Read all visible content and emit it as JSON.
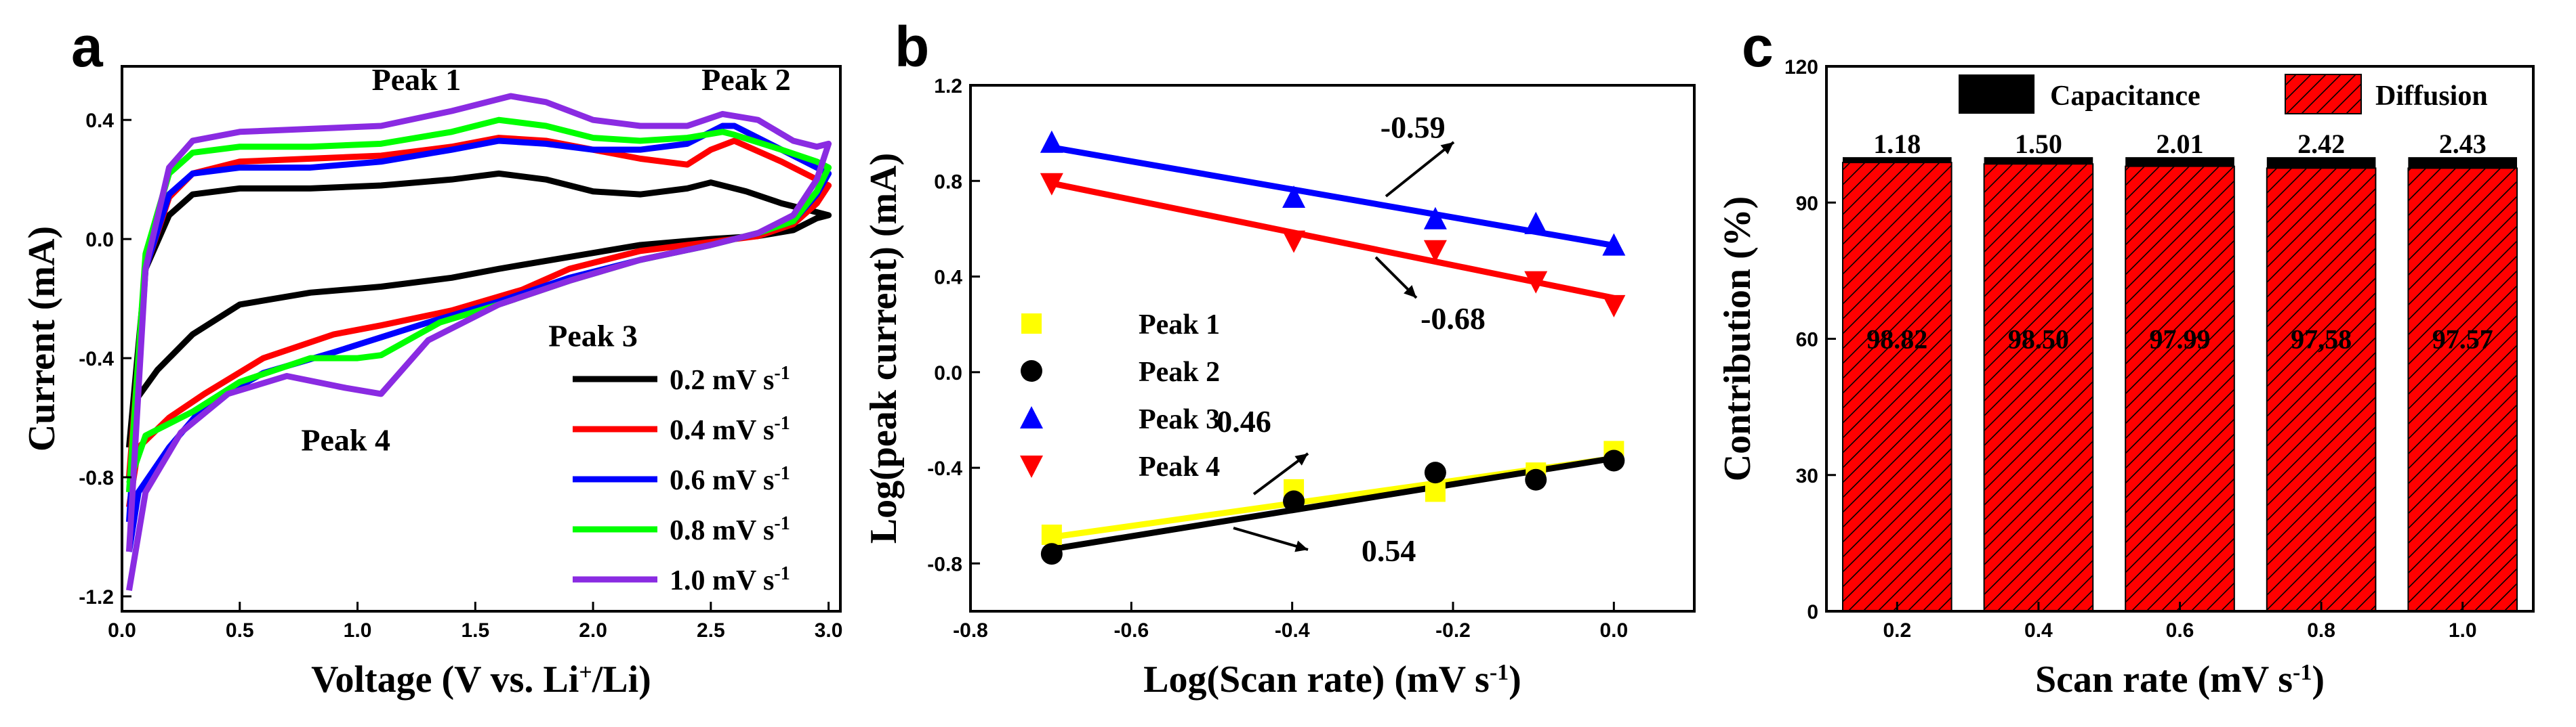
{
  "panel_letters": [
    "a",
    "b",
    "c"
  ],
  "chart_data": [
    {
      "type": "line",
      "panel": "a",
      "xlabel": "Voltage (V vs. Li",
      "xlabel_sup": "+",
      "xlabel_tail": "/Li)",
      "ylabel": "Current (mA)",
      "xlim": [
        0,
        3.05
      ],
      "ylim": [
        -1.25,
        0.58
      ],
      "xticks": [
        0.0,
        0.5,
        1.0,
        1.5,
        2.0,
        2.5,
        3.0
      ],
      "yticks": [
        -1.2,
        -0.8,
        -0.4,
        0.0,
        0.4
      ],
      "xtick_labels": [
        "0.0",
        "0.5",
        "1.0",
        "1.5",
        "2.0",
        "2.5",
        "3.0"
      ],
      "ytick_labels": [
        "-1.2",
        "-0.8",
        "-0.4",
        "0.0",
        "0.4"
      ],
      "annotations": [
        {
          "text": "Peak 1",
          "x": 1.25,
          "y": 0.5
        },
        {
          "text": "Peak 2",
          "x": 2.65,
          "y": 0.5
        },
        {
          "text": "Peak 3",
          "x": 2.0,
          "y": -0.36
        },
        {
          "text": "Peak 4",
          "x": 0.95,
          "y": -0.71
        }
      ],
      "legend_unit": "mV s",
      "legend_sup": "-1",
      "series": [
        {
          "name": "0.2",
          "color": "#000000",
          "ox": [
            0.03,
            0.1,
            0.2,
            0.3,
            0.5,
            0.8,
            1.1,
            1.4,
            1.6,
            1.8,
            2.0,
            2.2,
            2.4,
            2.5,
            2.65,
            2.8,
            2.95,
            3.0
          ],
          "oy": [
            -0.7,
            -0.1,
            0.08,
            0.15,
            0.17,
            0.17,
            0.18,
            0.2,
            0.22,
            0.2,
            0.16,
            0.15,
            0.17,
            0.19,
            0.16,
            0.12,
            0.09,
            0.08
          ],
          "rx": [
            3.0,
            2.95,
            2.85,
            2.7,
            2.5,
            2.2,
            1.9,
            1.6,
            1.4,
            1.1,
            0.8,
            0.5,
            0.3,
            0.15,
            0.05,
            0.03
          ],
          "ry": [
            0.08,
            0.07,
            0.03,
            0.01,
            0.0,
            -0.02,
            -0.06,
            -0.1,
            -0.13,
            -0.16,
            -0.18,
            -0.22,
            -0.32,
            -0.44,
            -0.55,
            -0.7
          ]
        },
        {
          "name": "0.4",
          "color": "#ff0000",
          "ox": [
            0.03,
            0.1,
            0.2,
            0.3,
            0.5,
            0.8,
            1.1,
            1.4,
            1.6,
            1.8,
            2.0,
            2.2,
            2.4,
            2.5,
            2.6,
            2.8,
            2.95,
            3.0
          ],
          "oy": [
            -0.8,
            -0.1,
            0.14,
            0.22,
            0.26,
            0.27,
            0.28,
            0.31,
            0.34,
            0.33,
            0.3,
            0.27,
            0.25,
            0.3,
            0.33,
            0.26,
            0.2,
            0.18
          ],
          "rx": [
            3.0,
            2.95,
            2.85,
            2.7,
            2.5,
            2.2,
            1.9,
            1.7,
            1.4,
            1.1,
            0.9,
            0.6,
            0.35,
            0.2,
            0.07,
            0.03
          ],
          "ry": [
            0.18,
            0.12,
            0.05,
            0.01,
            -0.01,
            -0.04,
            -0.1,
            -0.17,
            -0.24,
            -0.29,
            -0.32,
            -0.4,
            -0.52,
            -0.6,
            -0.7,
            -0.9
          ]
        },
        {
          "name": "0.6",
          "color": "#0000ff",
          "ox": [
            0.03,
            0.1,
            0.2,
            0.3,
            0.5,
            0.8,
            1.1,
            1.4,
            1.6,
            1.8,
            2.0,
            2.2,
            2.4,
            2.55,
            2.6,
            2.8,
            2.95,
            3.0
          ],
          "oy": [
            -0.95,
            -0.1,
            0.15,
            0.22,
            0.24,
            0.24,
            0.26,
            0.3,
            0.33,
            0.32,
            0.3,
            0.3,
            0.32,
            0.38,
            0.38,
            0.3,
            0.24,
            0.22
          ],
          "rx": [
            3.0,
            2.95,
            2.85,
            2.7,
            2.5,
            2.2,
            1.9,
            1.6,
            1.3,
            1.1,
            0.9,
            0.6,
            0.35,
            0.2,
            0.07,
            0.03
          ],
          "ry": [
            0.22,
            0.15,
            0.06,
            0.02,
            -0.02,
            -0.07,
            -0.13,
            -0.21,
            -0.28,
            -0.33,
            -0.38,
            -0.45,
            -0.56,
            -0.7,
            -0.85,
            -1.05
          ]
        },
        {
          "name": "0.8",
          "color": "#00ff00",
          "ox": [
            0.03,
            0.1,
            0.2,
            0.3,
            0.5,
            0.8,
            1.1,
            1.4,
            1.6,
            1.8,
            2.0,
            2.2,
            2.4,
            2.55,
            2.6,
            2.8,
            2.95,
            3.0
          ],
          "oy": [
            -0.85,
            -0.05,
            0.22,
            0.29,
            0.31,
            0.31,
            0.32,
            0.36,
            0.4,
            0.38,
            0.34,
            0.33,
            0.34,
            0.36,
            0.35,
            0.3,
            0.26,
            0.24
          ],
          "rx": [
            3.0,
            2.95,
            2.85,
            2.7,
            2.5,
            2.2,
            1.9,
            1.6,
            1.35,
            1.1,
            1.0,
            0.8,
            0.5,
            0.3,
            0.1,
            0.03
          ],
          "ry": [
            0.24,
            0.16,
            0.06,
            0.02,
            -0.02,
            -0.07,
            -0.14,
            -0.22,
            -0.28,
            -0.39,
            -0.4,
            -0.4,
            -0.48,
            -0.58,
            -0.66,
            -0.82
          ]
        },
        {
          "name": "1.0",
          "color": "#8a2be2",
          "ox": [
            0.03,
            0.1,
            0.2,
            0.3,
            0.5,
            0.8,
            1.1,
            1.4,
            1.65,
            1.8,
            2.0,
            2.2,
            2.4,
            2.55,
            2.7,
            2.85,
            2.95,
            3.0
          ],
          "oy": [
            -1.05,
            -0.1,
            0.24,
            0.33,
            0.36,
            0.37,
            0.38,
            0.43,
            0.48,
            0.46,
            0.4,
            0.38,
            0.38,
            0.42,
            0.4,
            0.33,
            0.31,
            0.32
          ],
          "rx": [
            3.0,
            2.95,
            2.85,
            2.7,
            2.5,
            2.2,
            1.9,
            1.6,
            1.3,
            1.1,
            0.95,
            0.7,
            0.45,
            0.25,
            0.1,
            0.03
          ],
          "ry": [
            0.32,
            0.2,
            0.08,
            0.02,
            -0.02,
            -0.07,
            -0.14,
            -0.22,
            -0.34,
            -0.52,
            -0.5,
            -0.46,
            -0.52,
            -0.65,
            -0.85,
            -1.18
          ]
        }
      ]
    },
    {
      "type": "scatter",
      "panel": "b",
      "xlabel": "Log(Scan rate) (mV s",
      "xlabel_sup": "-1",
      "xlabel_tail": ")",
      "ylabel": "Log(peak current) (mA)",
      "xlim": [
        -0.8,
        0.1
      ],
      "ylim": [
        -1.0,
        1.2
      ],
      "xticks": [
        -0.8,
        -0.6,
        -0.4,
        -0.2,
        0.0
      ],
      "yticks": [
        -0.8,
        -0.4,
        0.0,
        0.4,
        0.8,
        1.2
      ],
      "xtick_labels": [
        "-0.8",
        "-0.6",
        "-0.4",
        "-0.2",
        "0.0"
      ],
      "ytick_labels": [
        "-0.8",
        "-0.4",
        "0.0",
        "0.4",
        "0.8",
        "1.2"
      ],
      "x": [
        -0.699,
        -0.398,
        -0.222,
        -0.097,
        0.0
      ],
      "series": [
        {
          "name": "Peak 1",
          "marker": "square",
          "color": "#ffff00",
          "values": [
            -0.68,
            -0.49,
            -0.5,
            -0.42,
            -0.33
          ],
          "fit": [
            -0.69,
            -0.36
          ]
        },
        {
          "name": "Peak 2",
          "marker": "circle",
          "color": "#000000",
          "values": [
            -0.76,
            -0.54,
            -0.42,
            -0.45,
            -0.37
          ],
          "fit": [
            -0.74,
            -0.36
          ]
        },
        {
          "name": "Peak 3",
          "marker": "triangle-up",
          "color": "#0000ff",
          "values": [
            0.96,
            0.73,
            0.64,
            0.62,
            0.53
          ],
          "fit": [
            0.94,
            0.53
          ]
        },
        {
          "name": "Peak 4",
          "marker": "triangle-down",
          "color": "#ff0000",
          "values": [
            0.79,
            0.55,
            0.51,
            0.38,
            0.28
          ],
          "fit": [
            0.79,
            0.31
          ]
        }
      ],
      "slope_labels": [
        {
          "text": "-0.59",
          "x": -0.25,
          "y": 0.98
        },
        {
          "text": "-0.68",
          "x": -0.2,
          "y": 0.18
        },
        {
          "text": "0.46",
          "x": -0.46,
          "y": -0.25
        },
        {
          "text": "0.54",
          "x": -0.28,
          "y": -0.79
        }
      ]
    },
    {
      "type": "bar",
      "panel": "c",
      "stacked": true,
      "xlabel": "Scan rate (mV s",
      "xlabel_sup": "-1",
      "xlabel_tail": ")",
      "ylabel": "Contribution (%)",
      "ylim": [
        0,
        120
      ],
      "yticks": [
        0,
        30,
        60,
        90,
        120
      ],
      "ytick_labels": [
        "0",
        "30",
        "60",
        "90",
        "120"
      ],
      "categories": [
        "0.2",
        "0.4",
        "0.6",
        "0.8",
        "1.0"
      ],
      "series": [
        {
          "name": "Diffusion",
          "color": "#ff0000",
          "values": [
            98.82,
            98.5,
            97.99,
            97.58,
            97.57
          ],
          "labels": [
            "98.82",
            "98.50",
            "97.99",
            "97,58",
            "97.57"
          ]
        },
        {
          "name": "Capacitance",
          "color": "#000000",
          "values": [
            1.18,
            1.5,
            2.01,
            2.42,
            2.43
          ],
          "labels": [
            "1.18",
            "1.50",
            "2.01",
            "2.42",
            "2.43"
          ]
        }
      ],
      "legend_order": [
        "Capacitance",
        "Diffusion"
      ]
    }
  ]
}
